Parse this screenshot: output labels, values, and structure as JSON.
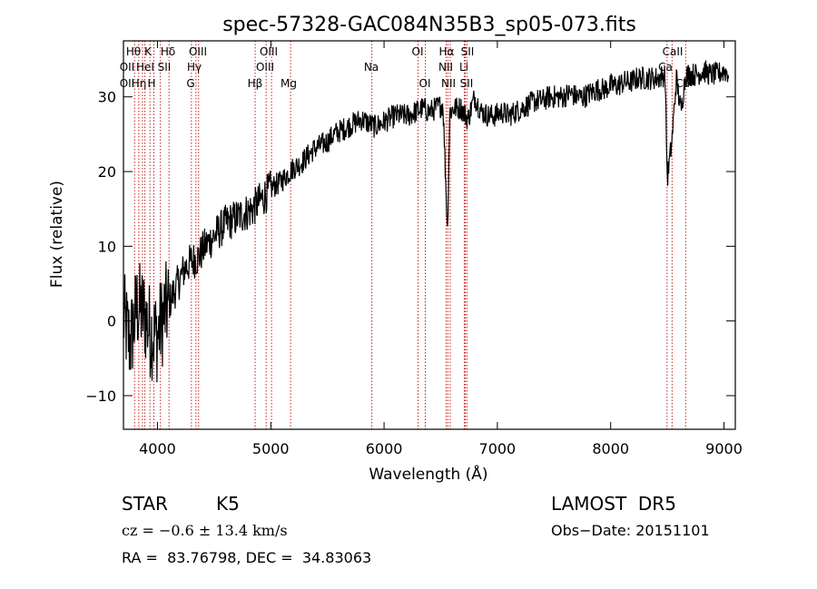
{
  "chart_data": {
    "type": "line",
    "title": "spec-57328-GAC084N35B3_sp05-073.fits",
    "xlabel": "Wavelength (Å)",
    "ylabel": "Flux (relative)",
    "xlim": [
      3700,
      9100
    ],
    "ylim": [
      -14.5,
      37.5
    ],
    "xticks": [
      4000,
      5000,
      6000,
      7000,
      8000,
      9000
    ],
    "yticks": [
      -10,
      0,
      10,
      20,
      30
    ],
    "grid": false,
    "series": [
      {
        "x": [
          3700,
          3760,
          3820,
          3880,
          3940,
          4000,
          4060,
          4120,
          4180,
          4240,
          4300,
          4360,
          4420,
          4480,
          4540,
          4600,
          4660,
          4720,
          4780,
          4840,
          4900,
          4960,
          5020,
          5080,
          5140,
          5200,
          5260,
          5320,
          5380,
          5440,
          5500,
          5560,
          5620,
          5680,
          5740,
          5800,
          5860,
          5920,
          5980,
          6040,
          6100,
          6160,
          6220,
          6280,
          6340,
          6400,
          6460,
          6520,
          6560,
          6580,
          6620,
          6680,
          6740,
          6800,
          6860,
          6920,
          6980,
          7040,
          7100,
          7160,
          7220,
          7280,
          7340,
          7400,
          7460,
          7520,
          7580,
          7640,
          7700,
          7760,
          7820,
          7880,
          7940,
          8000,
          8060,
          8120,
          8180,
          8240,
          8300,
          8360,
          8420,
          8480,
          8500,
          8540,
          8580,
          8620,
          8660,
          8700,
          8760,
          8820,
          8880,
          8940,
          9000,
          9060
        ],
        "y": [
          0.5,
          -3,
          2,
          1,
          -1.5,
          -2,
          1,
          3,
          5,
          7,
          8,
          8.5,
          10,
          11,
          12,
          13,
          13.5,
          14,
          14.5,
          15,
          16,
          17,
          18,
          18.5,
          19.5,
          20.5,
          21,
          22,
          23,
          23.5,
          24,
          25,
          25.5,
          26,
          26.5,
          27,
          26.5,
          26,
          26.5,
          27,
          27.5,
          27.5,
          27.5,
          28,
          28.5,
          28,
          28.5,
          29,
          12,
          28,
          28.5,
          28.5,
          27,
          30,
          28,
          27.5,
          27.5,
          28,
          27.5,
          28,
          28.5,
          29,
          29.5,
          29.5,
          30,
          30,
          30,
          30.5,
          30,
          30,
          30.5,
          31,
          31,
          31.5,
          31.5,
          32,
          32,
          32.5,
          32.5,
          32.5,
          32.5,
          33,
          19,
          24,
          32.5,
          28,
          33,
          33,
          33,
          33.5,
          33,
          33,
          33.5,
          33
        ]
      }
    ],
    "lines": {
      "top_row": [
        "Hθ",
        "K",
        "Hδ",
        "OIII",
        "OIII",
        "OI",
        "Hα",
        "SII",
        "CaII"
      ],
      "second_row": [
        "OII",
        "HeI",
        "SII",
        "Hγ",
        "OIII",
        "Na",
        "NII",
        "Li",
        "Ca"
      ],
      "third_row": [
        "OII",
        "Hη",
        "H",
        "G",
        "Hβ",
        "Mg",
        "OI",
        "NII",
        "SII",
        "Ca"
      ]
    }
  },
  "info": {
    "object_class": "STAR",
    "subclass": "K5",
    "survey": "LAMOST  DR5",
    "cz": "cz = −0.6 ± 13.4 km/s",
    "obs_date": "Obs−Date: 20151101",
    "coords": "RA =  83.76798, DEC =  34.83063"
  }
}
